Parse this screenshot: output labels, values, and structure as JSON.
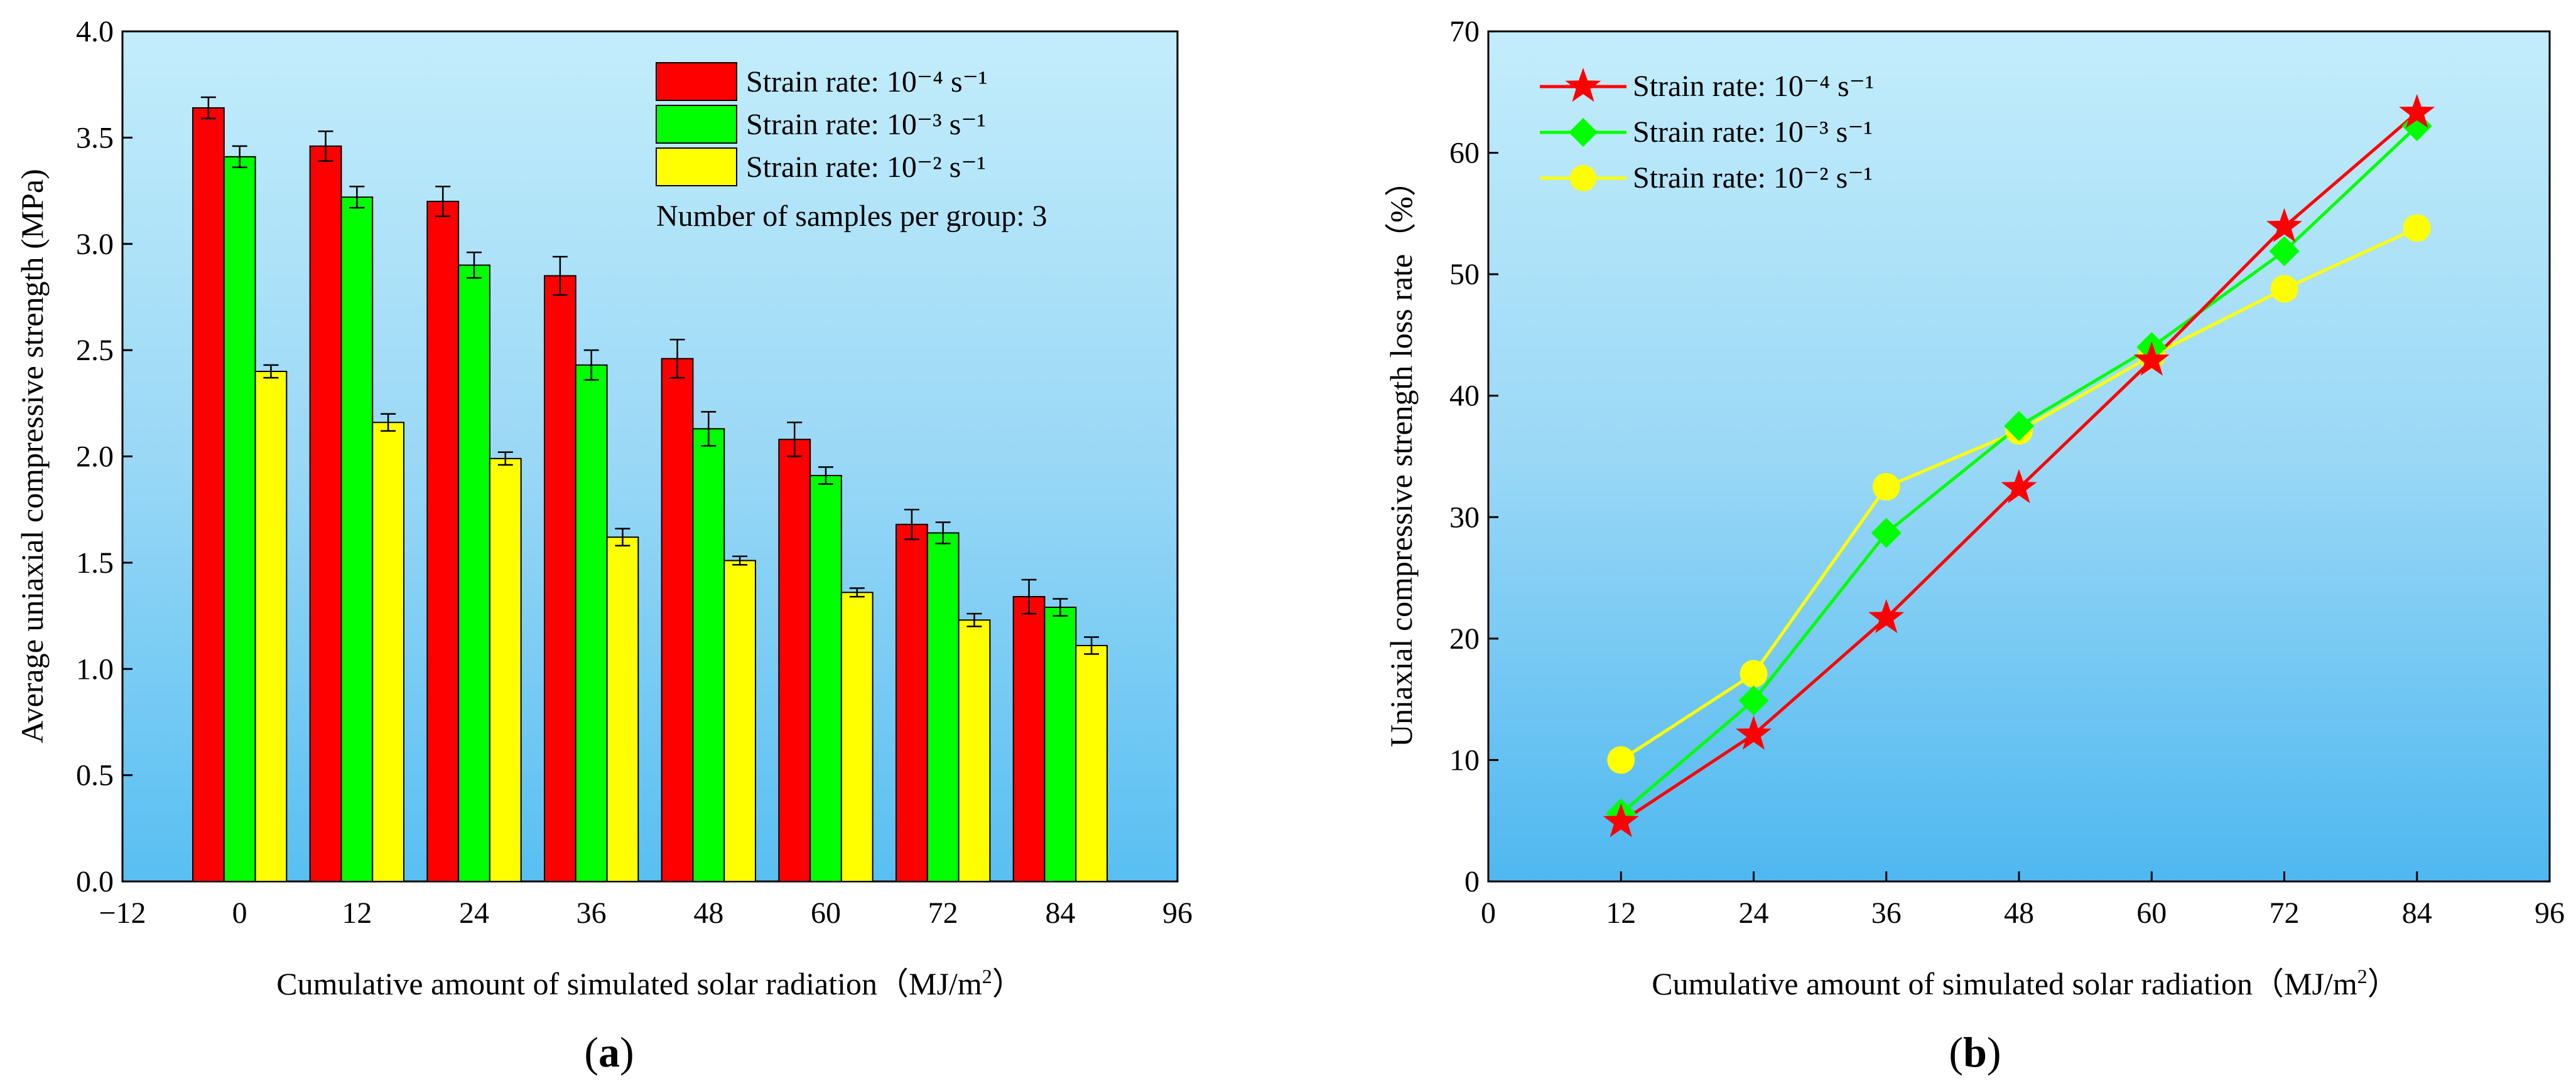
{
  "chart_data": [
    {
      "panel": "a",
      "panel_label": "a",
      "type": "bar",
      "xlabel": "Cumulative amount of simulated solar radiation（MJ/m",
      "xlabel_sup": "2",
      "xlabel_end": "）",
      "ylabel": "Average uniaxial compressive strength (MPa)",
      "xlim": [
        -12,
        96
      ],
      "ylim": [
        0,
        4.0
      ],
      "xticks": [
        -12,
        0,
        12,
        24,
        36,
        48,
        60,
        72,
        84,
        96
      ],
      "xtick_labels": [
        "−12",
        "0",
        "12",
        "24",
        "36",
        "48",
        "60",
        "72",
        "84",
        "96"
      ],
      "yticks": [
        0,
        0.5,
        1.0,
        1.5,
        2.0,
        2.5,
        3.0,
        3.5,
        4.0
      ],
      "ytick_labels": [
        "0.0",
        "0.5",
        "1.0",
        "1.5",
        "2.0",
        "2.5",
        "3.0",
        "3.5",
        "4.0"
      ],
      "categories": [
        0,
        12,
        24,
        36,
        48,
        60,
        72,
        84
      ],
      "series": [
        {
          "name": "Strain rate: 10⁻⁴ s⁻¹",
          "color": "#ff0000",
          "values": [
            3.64,
            3.46,
            3.2,
            2.85,
            2.46,
            2.08,
            1.68,
            1.34
          ],
          "errors": [
            0.05,
            0.07,
            0.07,
            0.09,
            0.09,
            0.08,
            0.07,
            0.08
          ]
        },
        {
          "name": "Strain rate: 10⁻³ s⁻¹",
          "color": "#00ff00",
          "values": [
            3.41,
            3.22,
            2.9,
            2.43,
            2.13,
            1.91,
            1.64,
            1.29
          ],
          "errors": [
            0.05,
            0.05,
            0.06,
            0.07,
            0.08,
            0.04,
            0.05,
            0.04
          ]
        },
        {
          "name": "Strain rate: 10⁻² s⁻¹",
          "color": "#ffff00",
          "values": [
            2.4,
            2.16,
            1.99,
            1.62,
            1.51,
            1.36,
            1.23,
            1.11
          ],
          "errors": [
            0.03,
            0.04,
            0.03,
            0.04,
            0.02,
            0.02,
            0.03,
            0.04
          ]
        }
      ],
      "annotation": "Number of samples per group: 3",
      "legend_position": "top-right"
    },
    {
      "panel": "b",
      "panel_label": "b",
      "type": "line",
      "xlabel": "Cumulative amount of simulated solar radiation（MJ/m",
      "xlabel_sup": "2",
      "xlabel_end": "）",
      "ylabel": "Uniaxial compressive strength loss rate（%）",
      "xlim": [
        0,
        96
      ],
      "ylim": [
        0,
        70
      ],
      "xticks": [
        0,
        12,
        24,
        36,
        48,
        60,
        72,
        84,
        96
      ],
      "xtick_labels": [
        "0",
        "12",
        "24",
        "36",
        "48",
        "60",
        "72",
        "84",
        "96"
      ],
      "yticks": [
        0,
        10,
        20,
        30,
        40,
        50,
        60,
        70
      ],
      "ytick_labels": [
        "0",
        "10",
        "20",
        "30",
        "40",
        "50",
        "60",
        "70"
      ],
      "x": [
        12,
        24,
        36,
        48,
        60,
        72,
        84
      ],
      "series": [
        {
          "name": "Strain rate: 10⁻⁴ s⁻¹",
          "color": "#ff0000",
          "marker": "star",
          "values": [
            4.9,
            12.1,
            21.7,
            32.4,
            42.9,
            53.9,
            63.3
          ]
        },
        {
          "name": "Strain rate: 10⁻³ s⁻¹",
          "color": "#00ff00",
          "marker": "diamond",
          "values": [
            5.6,
            14.9,
            28.7,
            37.5,
            44.0,
            51.9,
            62.2
          ]
        },
        {
          "name": "Strain rate: 10⁻² s⁻¹",
          "color": "#ffff00",
          "marker": "circle",
          "values": [
            10.0,
            17.1,
            32.5,
            37.1,
            43.3,
            48.8,
            53.8
          ]
        }
      ],
      "legend_position": "top-left"
    }
  ]
}
